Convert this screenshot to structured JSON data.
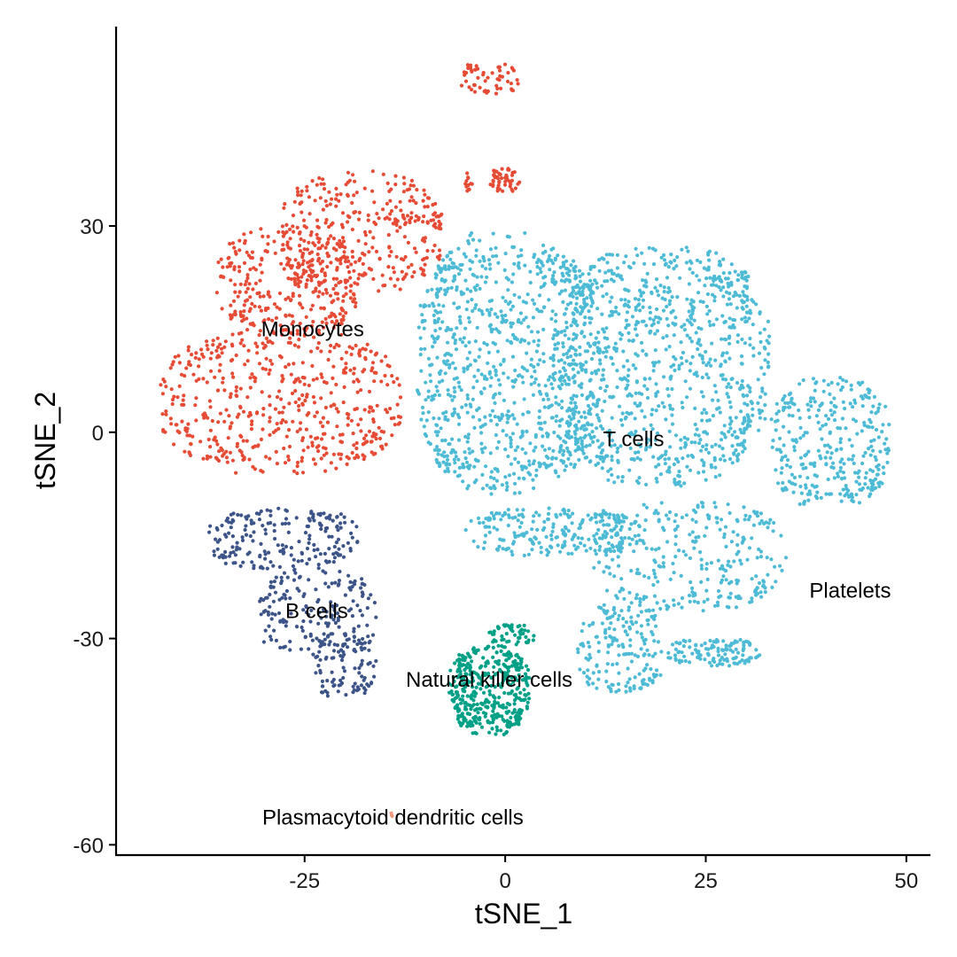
{
  "chart_data": {
    "type": "scatter",
    "title": "",
    "xlabel": "tSNE_1",
    "ylabel": "tSNE_2",
    "xlim": [
      -48.5,
      53
    ],
    "ylim": [
      -61.5,
      59
    ],
    "xticks": [
      -25,
      0,
      25,
      50
    ],
    "yticks": [
      30,
      0,
      -30,
      -60
    ],
    "xtick_labels": [
      "-25",
      "0",
      "25",
      "50"
    ],
    "ytick_labels": [
      "30",
      "0",
      "-30",
      "-60"
    ],
    "grid": false,
    "legend": "none",
    "series": [
      {
        "name": "Monocytes",
        "color": "#E64B35",
        "label_position": [
          -24,
          15
        ],
        "regions": [
          {
            "x": [
              -43,
              -13
            ],
            "y": [
              -6,
              15
            ],
            "n": 520
          },
          {
            "x": [
              -36,
              -18
            ],
            "y": [
              14,
              30
            ],
            "n": 320
          },
          {
            "x": [
              -28,
              -8
            ],
            "y": [
              20,
              38
            ],
            "n": 280
          },
          {
            "x": [
              -15,
              -7
            ],
            "y": [
              30,
              32
            ],
            "n": 30
          },
          {
            "x": [
              -5.5,
              2
            ],
            "y": [
              49,
              54
            ],
            "n": 55
          },
          {
            "x": [
              -2,
              2
            ],
            "y": [
              35,
              38.5
            ],
            "n": 50
          },
          {
            "x": [
              -5,
              -4
            ],
            "y": [
              35,
              38
            ],
            "n": 12
          }
        ]
      },
      {
        "name": "T cells",
        "color": "#4DBBD5",
        "label_position": [
          16,
          -1
        ],
        "regions": [
          {
            "x": [
              -11,
              11
            ],
            "y": [
              -9,
              29
            ],
            "n": 900
          },
          {
            "x": [
              6,
              33
            ],
            "y": [
              -8,
              27
            ],
            "n": 1000
          },
          {
            "x": [
              33,
              48
            ],
            "y": [
              -11,
              8
            ],
            "n": 320
          },
          {
            "x": [
              -5,
              17
            ],
            "y": [
              -18,
              -11
            ],
            "n": 240
          },
          {
            "x": [
              11,
              35
            ],
            "y": [
              -26,
              -10
            ],
            "n": 300
          },
          {
            "x": [
              9,
              20
            ],
            "y": [
              -38,
              -25
            ],
            "n": 180
          },
          {
            "x": [
              20,
              32
            ],
            "y": [
              -34,
              -30
            ],
            "n": 120
          }
        ]
      },
      {
        "name": "B cells",
        "color": "#3C5488",
        "label_position": [
          -23.5,
          -26
        ],
        "regions": [
          {
            "x": [
              -37,
              -18
            ],
            "y": [
              -20,
              -11
            ],
            "n": 200
          },
          {
            "x": [
              -31,
              -16
            ],
            "y": [
              -33,
              -20
            ],
            "n": 180
          },
          {
            "x": [
              -24,
              -16
            ],
            "y": [
              -39,
              -29
            ],
            "n": 100
          }
        ]
      },
      {
        "name": "Natural killer cells",
        "color": "#00A087",
        "label_position": [
          -2,
          -36
        ],
        "regions": [
          {
            "x": [
              -7,
              3
            ],
            "y": [
              -44,
              -31
            ],
            "n": 420
          },
          {
            "x": [
              -2,
              4
            ],
            "y": [
              -31,
              -28
            ],
            "n": 50
          }
        ]
      },
      {
        "name": "Platelets",
        "color": "#4DBBD5",
        "label_position": [
          43,
          -23
        ],
        "regions": []
      },
      {
        "name": "Plasmacytoid dendritic cells",
        "color": "#F39B7F",
        "label_position": [
          -14,
          -56
        ],
        "regions": [
          {
            "x": [
              -14.5,
              -14
            ],
            "y": [
              -56,
              -55
            ],
            "n": 3
          }
        ]
      }
    ]
  }
}
